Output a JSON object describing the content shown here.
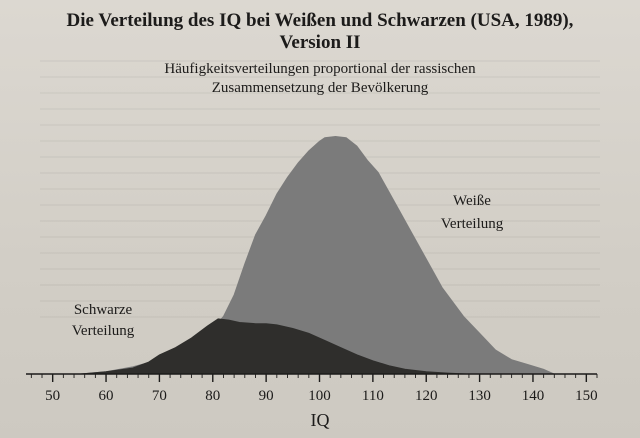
{
  "chart_data": {
    "type": "area",
    "title_lines": [
      "Die Verteilung des IQ bei Weißen und Schwarzen (USA, 1989),",
      "Version II"
    ],
    "subtitle_lines": [
      "Häufigkeitsverteilungen proportional der rassischen",
      "Zusammensetzung der Bevölkerung"
    ],
    "xlabel": "IQ",
    "ylabel": "",
    "xlim": [
      45,
      152
    ],
    "ylim": [
      0,
      1
    ],
    "x_ticks": [
      50,
      60,
      70,
      80,
      90,
      100,
      110,
      120,
      130,
      140,
      150
    ],
    "grid": false,
    "series": [
      {
        "name_lines": [
          "Weiße",
          "Verteilung"
        ],
        "color": "#7b7b7b",
        "x": [
          55,
          60,
          65,
          70,
          75,
          78,
          80,
          82,
          84,
          86,
          88,
          90,
          92,
          94,
          96,
          98,
          100,
          101,
          103,
          105,
          107,
          109,
          111,
          113,
          115,
          117,
          119,
          121,
          123,
          125,
          127,
          130,
          133,
          136,
          139,
          142,
          144
        ],
        "y": [
          0.0,
          0.01,
          0.03,
          0.06,
          0.11,
          0.15,
          0.19,
          0.24,
          0.33,
          0.46,
          0.58,
          0.66,
          0.75,
          0.82,
          0.88,
          0.93,
          0.97,
          0.985,
          0.99,
          0.985,
          0.95,
          0.89,
          0.84,
          0.76,
          0.68,
          0.6,
          0.52,
          0.44,
          0.36,
          0.3,
          0.24,
          0.17,
          0.1,
          0.06,
          0.04,
          0.02,
          0.0
        ]
      },
      {
        "name_lines": [
          "Schwarze",
          "Verteilung"
        ],
        "color": "#2f2e2c",
        "x": [
          55,
          60,
          65,
          68,
          70,
          73,
          76,
          79,
          81,
          83,
          85,
          88,
          90,
          92,
          95,
          98,
          101,
          104,
          107,
          110,
          113,
          116,
          120,
          124,
          128
        ],
        "y": [
          0.0,
          0.01,
          0.025,
          0.05,
          0.08,
          0.11,
          0.15,
          0.2,
          0.23,
          0.225,
          0.215,
          0.21,
          0.21,
          0.205,
          0.19,
          0.17,
          0.14,
          0.11,
          0.08,
          0.055,
          0.035,
          0.02,
          0.01,
          0.004,
          0.0
        ]
      }
    ]
  }
}
